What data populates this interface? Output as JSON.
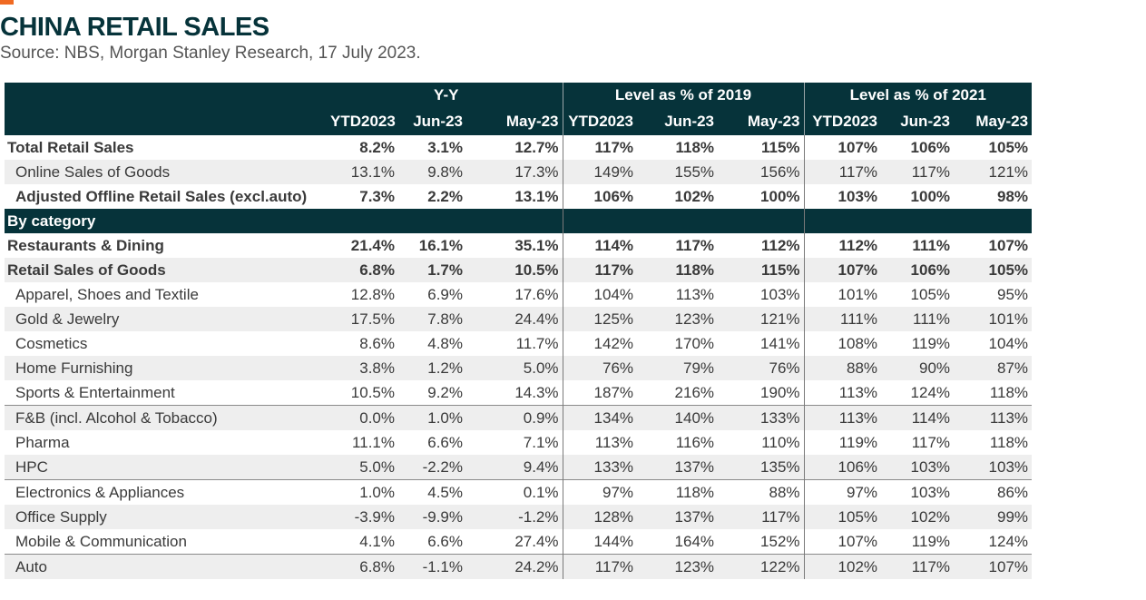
{
  "header": {
    "title": "CHINA RETAIL SALES",
    "source": "Source: NBS, Morgan Stanley Research, 17 July 2023."
  },
  "colors": {
    "accent": "#f06a22",
    "header_bg": "#06333a",
    "zebra": "#eeeeee"
  },
  "table": {
    "groups": [
      "Y-Y",
      "Level as % of 2019",
      "Level as % of 2021"
    ],
    "subheaders": [
      "YTD2023",
      "Jun-23",
      "May-23",
      "YTD2023",
      "Jun-23",
      "May-23",
      "YTD2023",
      "Jun-23",
      "May-23"
    ],
    "section_label": "By category",
    "rows": [
      {
        "label": "Total Retail Sales",
        "values": [
          "8.2%",
          "3.1%",
          "12.7%",
          "117%",
          "118%",
          "115%",
          "107%",
          "106%",
          "105%"
        ]
      },
      {
        "label": "Online Sales of Goods",
        "values": [
          "13.1%",
          "9.8%",
          "17.3%",
          "149%",
          "155%",
          "156%",
          "117%",
          "117%",
          "121%"
        ]
      },
      {
        "label": "Adjusted Offline Retail Sales (excl.auto)",
        "values": [
          "7.3%",
          "2.2%",
          "13.1%",
          "106%",
          "102%",
          "100%",
          "103%",
          "100%",
          "98%"
        ]
      },
      {
        "label": "Restaurants & Dining",
        "values": [
          "21.4%",
          "16.1%",
          "35.1%",
          "114%",
          "117%",
          "112%",
          "112%",
          "111%",
          "107%"
        ]
      },
      {
        "label": "Retail Sales of Goods",
        "values": [
          "6.8%",
          "1.7%",
          "10.5%",
          "117%",
          "118%",
          "115%",
          "107%",
          "106%",
          "105%"
        ]
      },
      {
        "label": "Apparel, Shoes and Textile",
        "values": [
          "12.8%",
          "6.9%",
          "17.6%",
          "104%",
          "113%",
          "103%",
          "101%",
          "105%",
          "95%"
        ]
      },
      {
        "label": "Gold & Jewelry",
        "values": [
          "17.5%",
          "7.8%",
          "24.4%",
          "125%",
          "123%",
          "121%",
          "111%",
          "111%",
          "101%"
        ]
      },
      {
        "label": "Cosmetics",
        "values": [
          "8.6%",
          "4.8%",
          "11.7%",
          "142%",
          "170%",
          "141%",
          "108%",
          "119%",
          "104%"
        ]
      },
      {
        "label": "Home Furnishing",
        "values": [
          "3.8%",
          "1.2%",
          "5.0%",
          "76%",
          "79%",
          "76%",
          "88%",
          "90%",
          "87%"
        ]
      },
      {
        "label": "Sports & Entertainment",
        "values": [
          "10.5%",
          "9.2%",
          "14.3%",
          "187%",
          "216%",
          "190%",
          "113%",
          "124%",
          "118%"
        ]
      },
      {
        "label": "F&B (incl. Alcohol & Tobacco)",
        "values": [
          "0.0%",
          "1.0%",
          "0.9%",
          "134%",
          "140%",
          "133%",
          "113%",
          "114%",
          "113%"
        ]
      },
      {
        "label": "Pharma",
        "values": [
          "11.1%",
          "6.6%",
          "7.1%",
          "113%",
          "116%",
          "110%",
          "119%",
          "117%",
          "118%"
        ]
      },
      {
        "label": "HPC",
        "values": [
          "5.0%",
          "-2.2%",
          "9.4%",
          "133%",
          "137%",
          "135%",
          "106%",
          "103%",
          "103%"
        ]
      },
      {
        "label": "Electronics & Appliances",
        "values": [
          "1.0%",
          "4.5%",
          "0.1%",
          "97%",
          "118%",
          "88%",
          "97%",
          "103%",
          "86%"
        ]
      },
      {
        "label": "Office Supply",
        "values": [
          "-3.9%",
          "-9.9%",
          "-1.2%",
          "128%",
          "137%",
          "117%",
          "105%",
          "102%",
          "99%"
        ]
      },
      {
        "label": "Mobile & Communication",
        "values": [
          "4.1%",
          "6.6%",
          "27.4%",
          "144%",
          "164%",
          "152%",
          "107%",
          "119%",
          "124%"
        ]
      },
      {
        "label": "Auto",
        "values": [
          "6.8%",
          "-1.1%",
          "24.2%",
          "117%",
          "123%",
          "122%",
          "102%",
          "117%",
          "107%"
        ]
      }
    ]
  }
}
